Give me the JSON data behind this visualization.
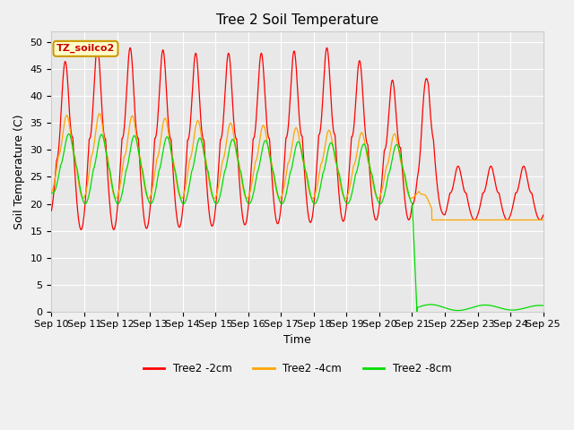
{
  "title": "Tree 2 Soil Temperature",
  "xlabel": "Time",
  "ylabel": "Soil Temperature (C)",
  "ylim": [
    0,
    52
  ],
  "yticks": [
    0,
    5,
    10,
    15,
    20,
    25,
    30,
    35,
    40,
    45,
    50
  ],
  "x_labels": [
    "Sep 10",
    "Sep 11",
    "Sep 12",
    "Sep 13",
    "Sep 14",
    "Sep 15",
    "Sep 16",
    "Sep 17",
    "Sep 18",
    "Sep 19",
    "Sep 20",
    "Sep 21",
    "Sep 22",
    "Sep 23",
    "Sep 24",
    "Sep 25"
  ],
  "legend_labels": [
    "Tree2 -2cm",
    "Tree2 -4cm",
    "Tree2 -8cm"
  ],
  "line_colors": [
    "#ff0000",
    "#ffa500",
    "#00dd00"
  ],
  "annotation_text": "TZ_soilco2",
  "bg_color": "#e8e8e8",
  "fig_bg_color": "#f0f0f0",
  "grid_color": "#ffffff",
  "title_fontsize": 11,
  "axis_label_fontsize": 9,
  "tick_fontsize": 8
}
